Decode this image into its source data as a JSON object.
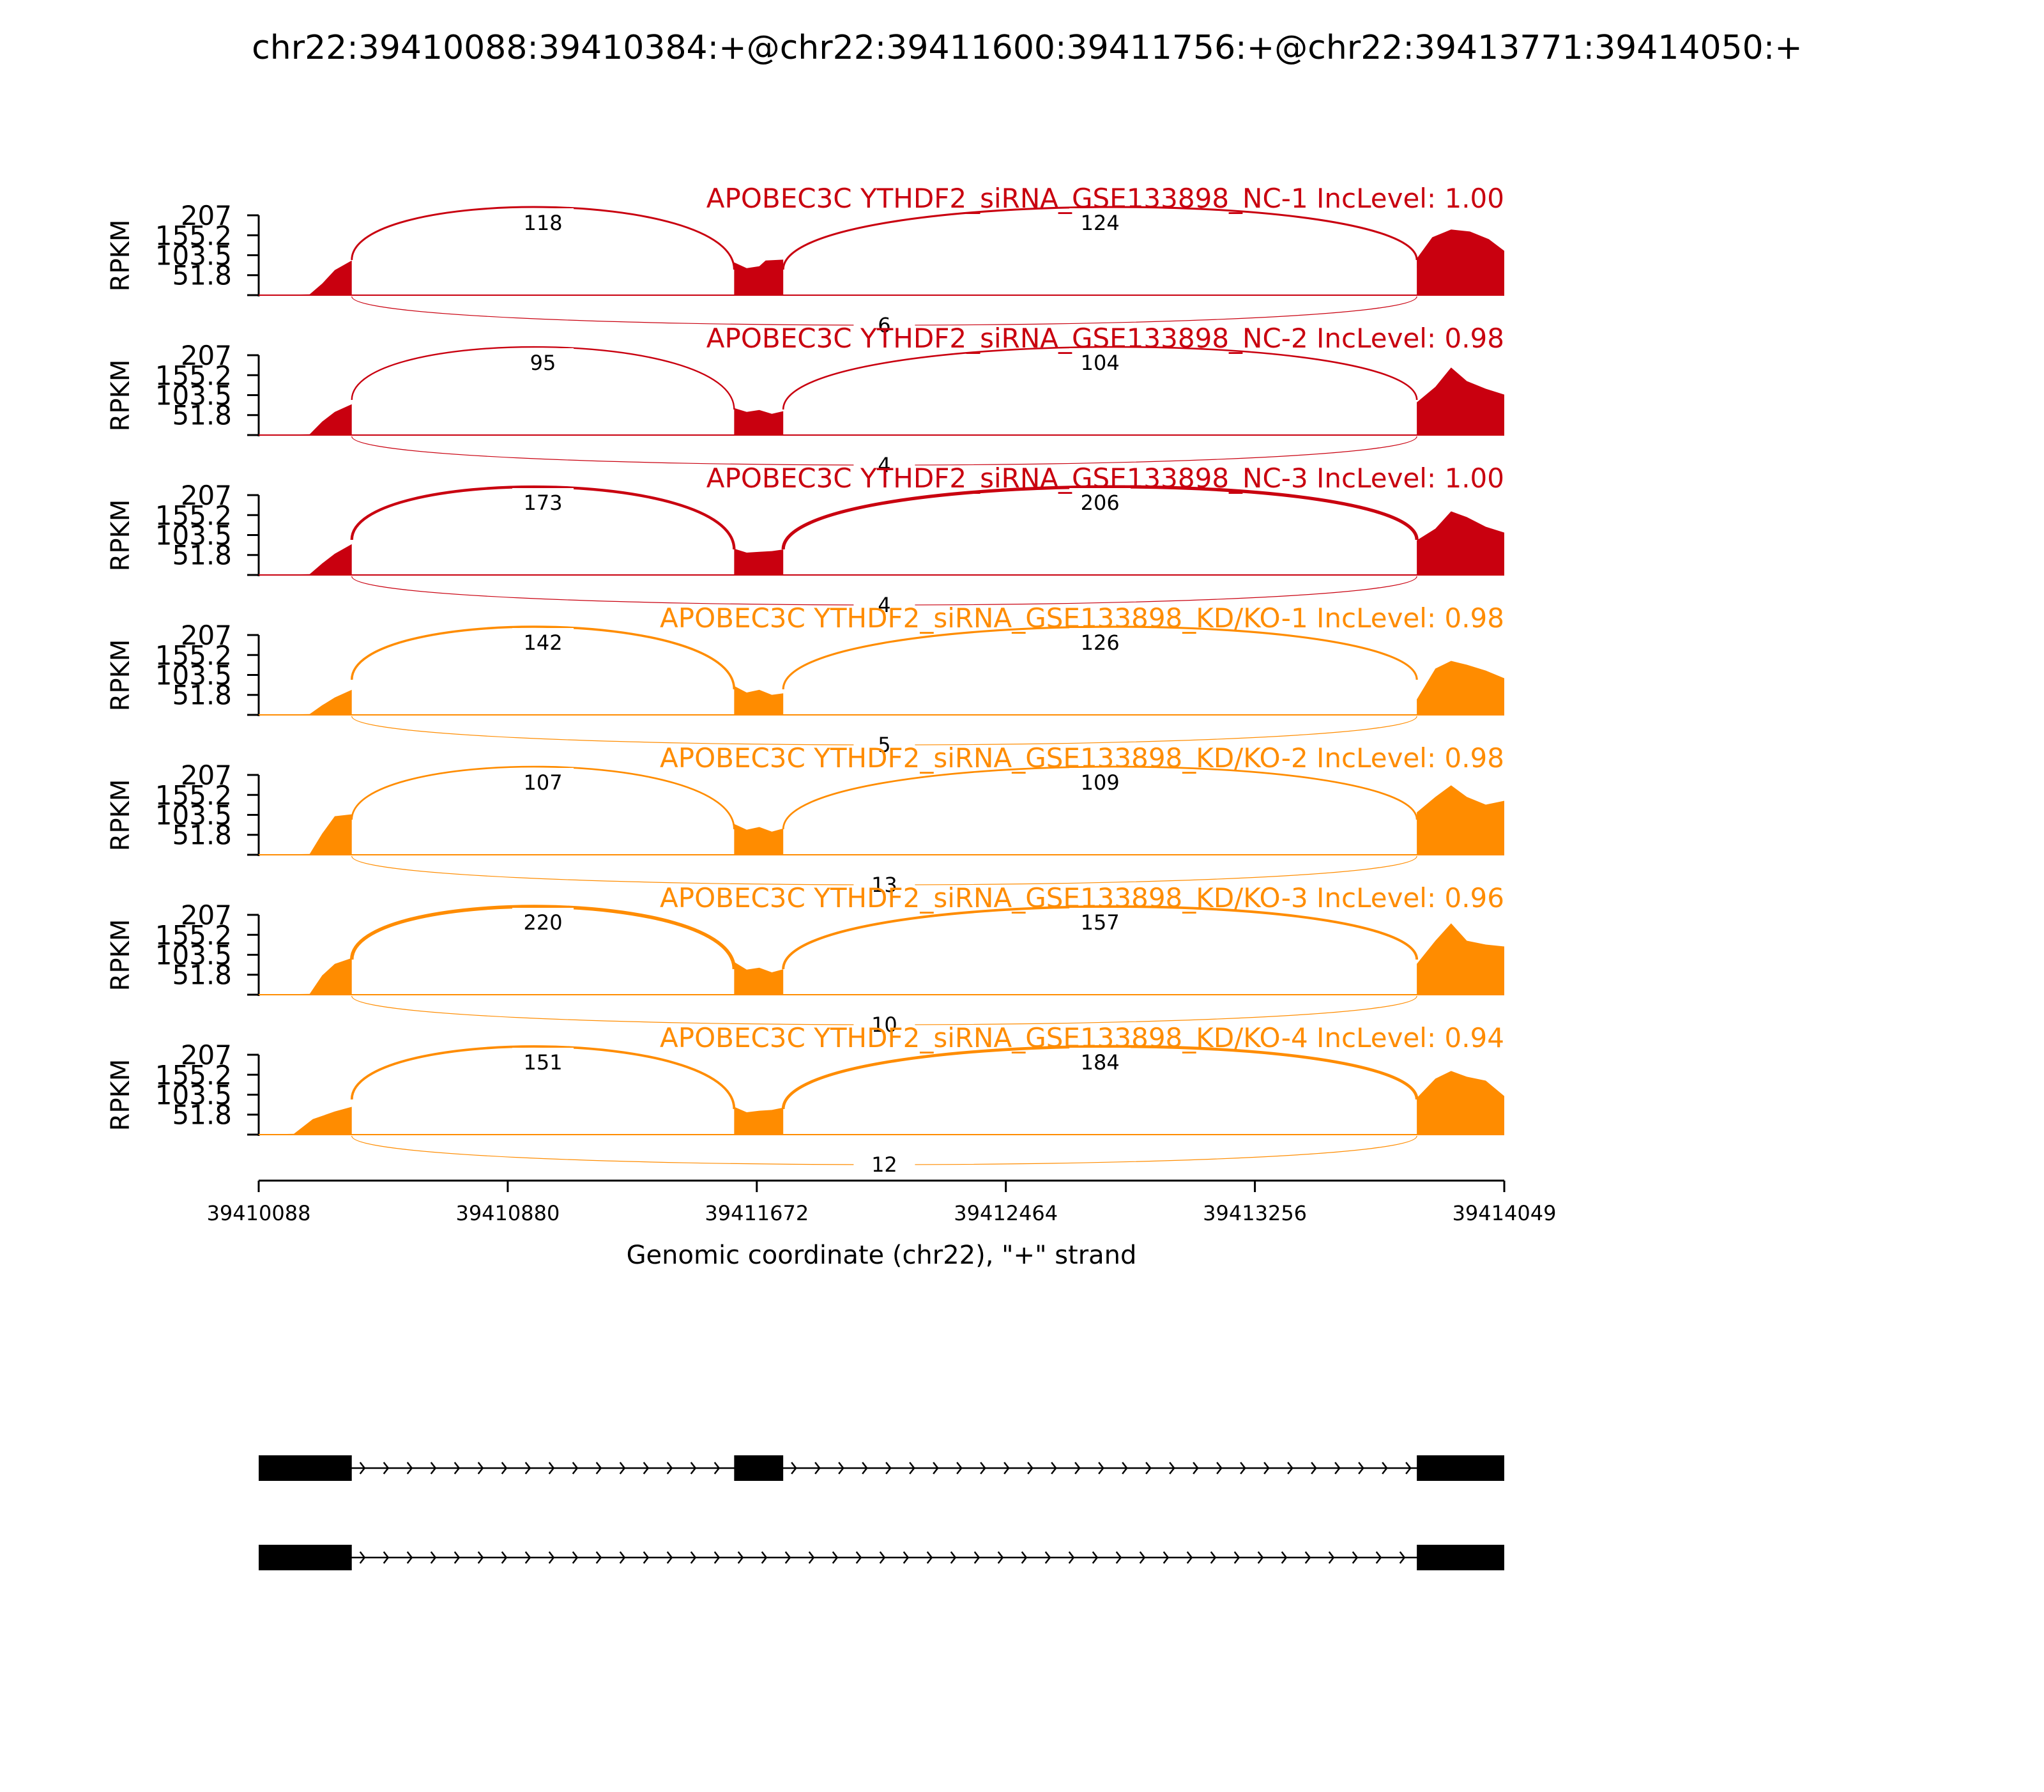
{
  "chart_data": {
    "type": "area",
    "title": "chr22:39410088:39410384:+@chr22:39411600:39411756:+@chr22:39413771:39414050:+",
    "xlabel": "Genomic coordinate (chr22), \"+\" strand",
    "ylabel": "RPKM",
    "xlim": [
      39410088,
      39414049
    ],
    "ylim": [
      0,
      207
    ],
    "x_ticks": [
      "39410088",
      "39410880",
      "39411672",
      "39412464",
      "39413256",
      "39414049"
    ],
    "y_ticks": [
      "207",
      "155.2",
      "103.5",
      "51.8"
    ],
    "colors": {
      "NC": "#c9000f",
      "KD": "#ff8c00"
    },
    "exons": [
      [
        39410088,
        39410384
      ],
      [
        39411600,
        39411756
      ],
      [
        39413771,
        39414050
      ]
    ],
    "tracks": [
      {
        "name": "APOBEC3C YTHDF2_siRNA_GSE133898_NC-1 IncLevel: 1.00",
        "group": "NC",
        "junctions": {
          "inclusion_1": "118",
          "inclusion_2": "124",
          "skipping": "6"
        },
        "coverage": [
          [
            39410088,
            0
          ],
          [
            39410250,
            2
          ],
          [
            39410290,
            30
          ],
          [
            39410330,
            65
          ],
          [
            39410384,
            90
          ],
          [
            39411600,
            85
          ],
          [
            39411640,
            70
          ],
          [
            39411680,
            75
          ],
          [
            39411700,
            90
          ],
          [
            39411756,
            92
          ],
          [
            39413771,
            95
          ],
          [
            39413820,
            150
          ],
          [
            39413880,
            170
          ],
          [
            39413940,
            165
          ],
          [
            39414000,
            145
          ],
          [
            39414049,
            115
          ]
        ]
      },
      {
        "name": "APOBEC3C YTHDF2_siRNA_GSE133898_NC-2 IncLevel: 0.98",
        "group": "NC",
        "junctions": {
          "inclusion_1": "95",
          "inclusion_2": "104",
          "skipping": "4"
        },
        "coverage": [
          [
            39410088,
            0
          ],
          [
            39410250,
            2
          ],
          [
            39410290,
            35
          ],
          [
            39410330,
            60
          ],
          [
            39410384,
            80
          ],
          [
            39411600,
            70
          ],
          [
            39411640,
            60
          ],
          [
            39411680,
            65
          ],
          [
            39411720,
            55
          ],
          [
            39411756,
            62
          ],
          [
            39413771,
            85
          ],
          [
            39413830,
            125
          ],
          [
            39413880,
            175
          ],
          [
            39413930,
            140
          ],
          [
            39413990,
            120
          ],
          [
            39414049,
            105
          ]
        ]
      },
      {
        "name": "APOBEC3C YTHDF2_siRNA_GSE133898_NC-3 IncLevel: 1.00",
        "group": "NC",
        "junctions": {
          "inclusion_1": "173",
          "inclusion_2": "206",
          "skipping": "4"
        },
        "coverage": [
          [
            39410088,
            0
          ],
          [
            39410250,
            2
          ],
          [
            39410290,
            30
          ],
          [
            39410330,
            55
          ],
          [
            39410384,
            80
          ],
          [
            39411600,
            68
          ],
          [
            39411640,
            58
          ],
          [
            39411680,
            60
          ],
          [
            39411720,
            62
          ],
          [
            39411756,
            66
          ],
          [
            39413771,
            90
          ],
          [
            39413830,
            120
          ],
          [
            39413880,
            165
          ],
          [
            39413930,
            150
          ],
          [
            39413990,
            125
          ],
          [
            39414049,
            110
          ]
        ]
      },
      {
        "name": "APOBEC3C YTHDF2_siRNA_GSE133898_KD/KO-1 IncLevel: 0.98",
        "group": "KD",
        "junctions": {
          "inclusion_1": "142",
          "inclusion_2": "126",
          "skipping": "5"
        },
        "coverage": [
          [
            39410088,
            0
          ],
          [
            39410250,
            2
          ],
          [
            39410290,
            25
          ],
          [
            39410330,
            45
          ],
          [
            39410384,
            65
          ],
          [
            39411600,
            75
          ],
          [
            39411640,
            58
          ],
          [
            39411680,
            65
          ],
          [
            39411720,
            52
          ],
          [
            39411756,
            56
          ],
          [
            39413771,
            40
          ],
          [
            39413830,
            120
          ],
          [
            39413880,
            140
          ],
          [
            39413930,
            130
          ],
          [
            39413990,
            115
          ],
          [
            39414049,
            95
          ]
        ]
      },
      {
        "name": "APOBEC3C YTHDF2_siRNA_GSE133898_KD/KO-2 IncLevel: 0.98",
        "group": "KD",
        "junctions": {
          "inclusion_1": "107",
          "inclusion_2": "109",
          "skipping": "13"
        },
        "coverage": [
          [
            39410088,
            0
          ],
          [
            39410250,
            2
          ],
          [
            39410290,
            55
          ],
          [
            39410330,
            100
          ],
          [
            39410384,
            105
          ],
          [
            39411600,
            80
          ],
          [
            39411640,
            65
          ],
          [
            39411680,
            72
          ],
          [
            39411720,
            60
          ],
          [
            39411756,
            68
          ],
          [
            39413771,
            110
          ],
          [
            39413830,
            150
          ],
          [
            39413880,
            180
          ],
          [
            39413930,
            150
          ],
          [
            39413990,
            130
          ],
          [
            39414049,
            140
          ]
        ]
      },
      {
        "name": "APOBEC3C YTHDF2_siRNA_GSE133898_KD/KO-3 IncLevel: 0.96",
        "group": "KD",
        "junctions": {
          "inclusion_1": "220",
          "inclusion_2": "157",
          "skipping": "10"
        },
        "coverage": [
          [
            39410088,
            0
          ],
          [
            39410250,
            2
          ],
          [
            39410290,
            50
          ],
          [
            39410330,
            80
          ],
          [
            39410384,
            95
          ],
          [
            39411600,
            85
          ],
          [
            39411640,
            65
          ],
          [
            39411680,
            70
          ],
          [
            39411720,
            58
          ],
          [
            39411756,
            66
          ],
          [
            39413771,
            80
          ],
          [
            39413830,
            140
          ],
          [
            39413880,
            185
          ],
          [
            39413930,
            140
          ],
          [
            39413990,
            130
          ],
          [
            39414049,
            125
          ]
        ]
      },
      {
        "name": "APOBEC3C YTHDF2_siRNA_GSE133898_KD/KO-4 IncLevel: 0.94",
        "group": "KD",
        "junctions": {
          "inclusion_1": "151",
          "inclusion_2": "184",
          "skipping": "12"
        },
        "coverage": [
          [
            39410088,
            0
          ],
          [
            39410200,
            2
          ],
          [
            39410260,
            40
          ],
          [
            39410330,
            60
          ],
          [
            39410384,
            72
          ],
          [
            39411600,
            72
          ],
          [
            39411640,
            58
          ],
          [
            39411680,
            62
          ],
          [
            39411720,
            64
          ],
          [
            39411756,
            70
          ],
          [
            39413771,
            95
          ],
          [
            39413830,
            145
          ],
          [
            39413880,
            165
          ],
          [
            39413930,
            150
          ],
          [
            39413990,
            140
          ],
          [
            39414049,
            100
          ]
        ]
      }
    ],
    "isoforms": [
      {
        "exons": [
          [
            39410088,
            39410384
          ],
          [
            39411600,
            39411756
          ],
          [
            39413771,
            39414049
          ]
        ]
      },
      {
        "exons": [
          [
            39410088,
            39410384
          ],
          [
            39413771,
            39414049
          ]
        ]
      }
    ]
  }
}
